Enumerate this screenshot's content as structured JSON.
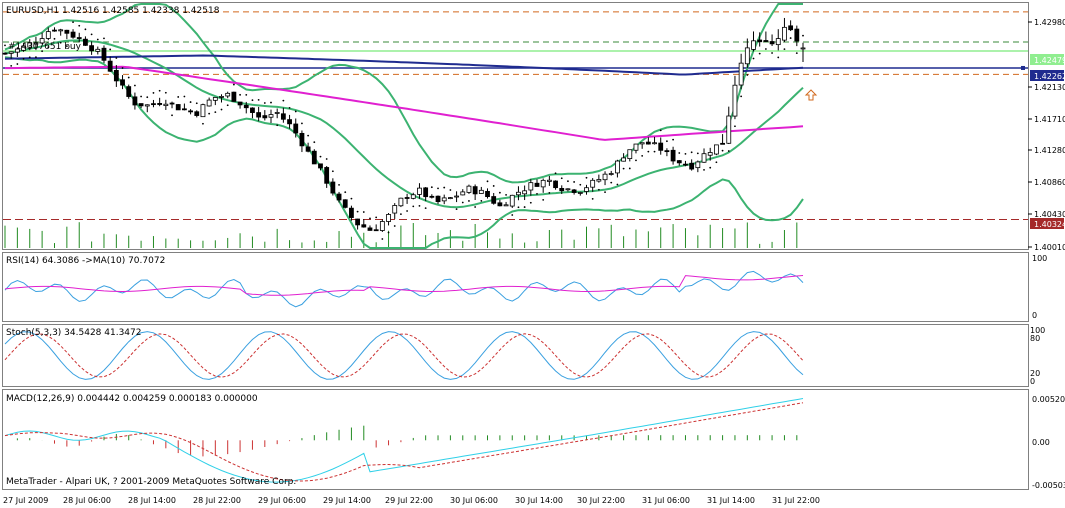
{
  "header": {
    "symbol_info": "EURUSD,H1  1.42516  1.42585  1.42338  1.42518",
    "order_label": "#14307651 buy"
  },
  "price_axis": {
    "ticks": [
      "1.42980",
      "1.42130",
      "1.41710",
      "1.41280",
      "1.40860",
      "1.40430",
      "1.40010"
    ],
    "tags": [
      {
        "text": "1.42479",
        "color": "#90ee90"
      },
      {
        "text": "1.42262",
        "color": "#1f2b8f"
      },
      {
        "text": "1.40324",
        "color": "#a52a2a"
      }
    ]
  },
  "time_axis": [
    "27 Jul 2009",
    "28 Jul 06:00",
    "28 Jul 14:00",
    "28 Jul 22:00",
    "29 Jul 06:00",
    "29 Jul 14:00",
    "29 Jul 22:00",
    "30 Jul 06:00",
    "30 Jul 14:00",
    "30 Jul 22:00",
    "31 Jul 06:00",
    "31 Jul 14:00",
    "31 Jul 22:00"
  ],
  "rsi": {
    "label": "RSI(14) 64.3086   ->MA(10) 70.7072",
    "ticks": [
      "100",
      "0"
    ]
  },
  "stoch": {
    "label": "Stoch(5,3,3) 34.5428 41.3472",
    "ticks": [
      "100",
      "80",
      "20",
      "0"
    ]
  },
  "macd": {
    "label": "MACD(12,26,9) 0.004442 0.004259 0.000183 0.000000",
    "ticks": [
      "0.00520",
      "0.00",
      "-0.00503"
    ]
  },
  "copyright": "MetaTrader - Alpari UK, ? 2001-2009 MetaQuotes Software Corp.",
  "colors": {
    "bollinger": "#3cb371",
    "ma_magenta": "#e020d0",
    "ma_navy": "#1f2b8f",
    "rsi_line": "#3aa0e0",
    "rsi_ma": "#e020d0",
    "stoch_main": "#3aa0e0",
    "stoch_signal": "#cc3333",
    "macd_main": "#30d0e8",
    "macd_signal": "#cc3333",
    "hist_pos": "#228b22",
    "hist_neg": "#cc3333",
    "volume": "#228b22",
    "sar": "#000000",
    "green_level": "#90ee90",
    "navy_level": "#1f2b8f",
    "dash_level": "#d2691e",
    "red_dash": "#a52a2a"
  },
  "chart_data": {
    "type": "candlestick",
    "instrument": "EURUSD",
    "timeframe": "H1",
    "ohlc_last": {
      "open": 1.42516,
      "high": 1.42585,
      "low": 1.42338,
      "close": 1.42518
    },
    "price_ylim": [
      1.3996,
      1.4308
    ],
    "levels": {
      "current_bid": 1.42479,
      "order_open": 1.42262,
      "stop_or_low": 1.40324,
      "upper_dashed": 1.4298,
      "mid_dashed": 1.4218
    },
    "close_path": [
      1.4245,
      1.4251,
      1.4262,
      1.4278,
      1.4271,
      1.4259,
      1.4243,
      1.4211,
      1.4182,
      1.4178,
      1.4185,
      1.4174,
      1.4169,
      1.4188,
      1.4192,
      1.4178,
      1.416,
      1.417,
      1.415,
      1.4118,
      1.4087,
      1.4052,
      1.4028,
      1.4018,
      1.4036,
      1.4062,
      1.4069,
      1.4054,
      1.406,
      1.4072,
      1.4066,
      1.4049,
      1.4066,
      1.4077,
      1.4083,
      1.4072,
      1.407,
      1.4081,
      1.4095,
      1.4121,
      1.4132,
      1.4124,
      1.4108,
      1.4101,
      1.4119,
      1.4132,
      1.4233,
      1.4262,
      1.4254,
      1.4278,
      1.4252
    ],
    "rsi": {
      "period": 14,
      "value": 64.3086,
      "ma_period": 10,
      "ma_value": 70.7072,
      "ylim": [
        0,
        100
      ]
    },
    "stochastic": {
      "params": "5,3,3",
      "main": 34.5428,
      "signal": 41.3472,
      "levels": [
        80,
        20
      ],
      "ylim": [
        0,
        100
      ]
    },
    "macd": {
      "params": "12,26,9",
      "main": 0.004442,
      "signal": 0.004259,
      "hist": 0.000183,
      "ylim": [
        -0.00503,
        0.0052
      ]
    }
  }
}
